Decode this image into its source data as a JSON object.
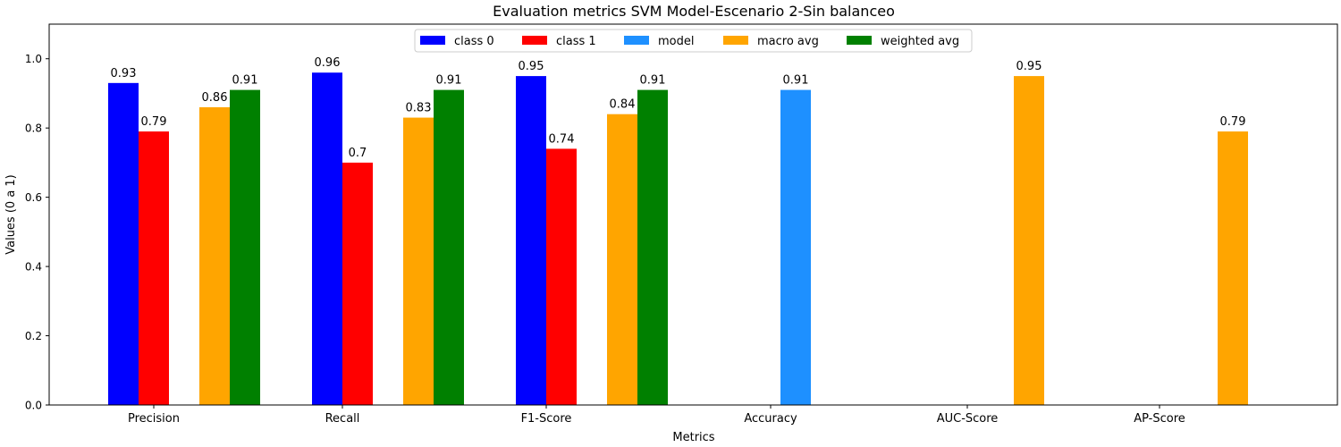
{
  "chart_data": {
    "type": "bar",
    "title": "Evaluation metrics SVM Model-Escenario 2-Sin balanceo",
    "xlabel": "Metrics",
    "ylabel": "Values (0 a 1)",
    "ylim": [
      0,
      1.1
    ],
    "yticks": [
      "0.0",
      "0.2",
      "0.4",
      "0.6",
      "0.8",
      "1.0"
    ],
    "categories": [
      "Precision",
      "Recall",
      "F1-Score",
      "Accuracy",
      "AUC-Score",
      "AP-Score"
    ],
    "legend_position": "top-center",
    "grid": false,
    "series": [
      {
        "name": "class 0",
        "color": "#0000ff",
        "values": [
          0.93,
          0.96,
          0.95,
          null,
          null,
          null
        ],
        "labels": [
          "0.93",
          "0.96",
          "0.95",
          null,
          null,
          null
        ]
      },
      {
        "name": "class 1",
        "color": "#ff0000",
        "values": [
          0.79,
          0.7,
          0.74,
          null,
          null,
          null
        ],
        "labels": [
          "0.79",
          "0.7",
          "0.74",
          null,
          null,
          null
        ]
      },
      {
        "name": "model",
        "color": "#1e90ff",
        "values": [
          null,
          null,
          null,
          0.91,
          null,
          null
        ],
        "labels": [
          null,
          null,
          null,
          "0.91",
          null,
          null
        ]
      },
      {
        "name": "macro avg",
        "color": "#ffa500",
        "values": [
          0.86,
          0.83,
          0.84,
          null,
          0.95,
          0.79
        ],
        "labels": [
          "0.86",
          "0.83",
          "0.84",
          null,
          "0.95",
          "0.79"
        ]
      },
      {
        "name": "weighted avg",
        "color": "#008000",
        "values": [
          0.91,
          0.91,
          0.91,
          null,
          null,
          null
        ],
        "labels": [
          "0.91",
          "0.91",
          "0.91",
          null,
          null,
          null
        ]
      }
    ]
  }
}
